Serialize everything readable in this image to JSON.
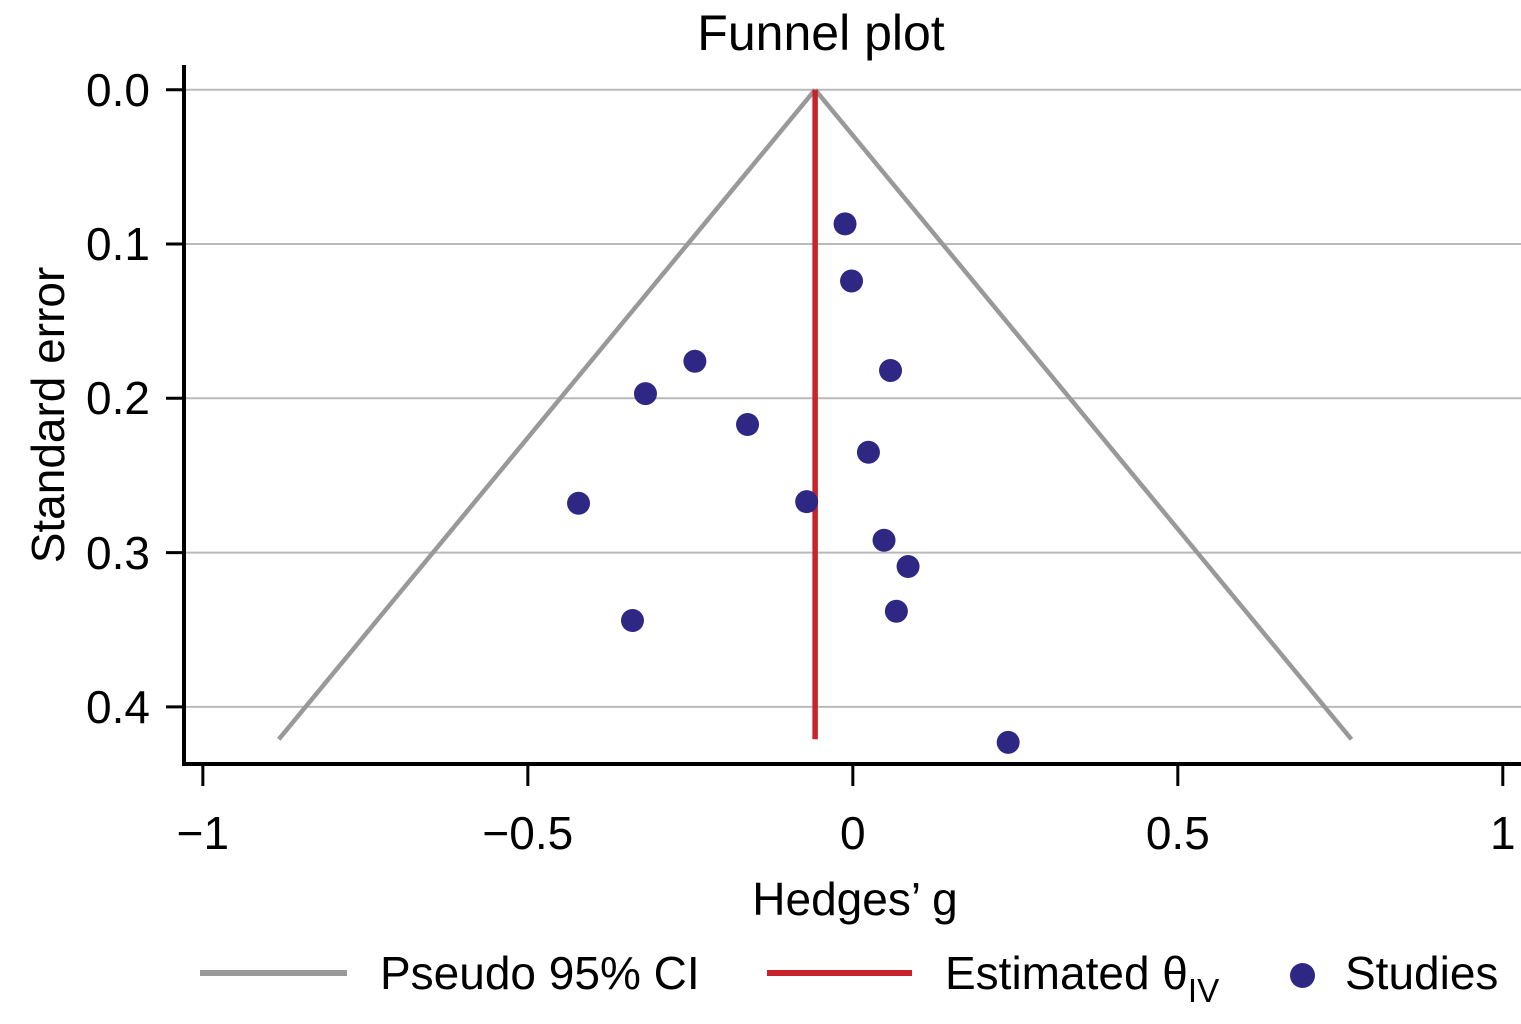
{
  "title": "Funnel plot",
  "axes": {
    "y_label": "Standard error",
    "x_label": "Hedges’ g"
  },
  "legend": {
    "pseudo_ci": {
      "label": "Pseudo 95% CI",
      "swatch": "gray-line"
    },
    "estimated": {
      "label_main": "Estimated θ",
      "label_sub": "IV",
      "swatch": "red-line"
    },
    "studies": {
      "label": "Studies",
      "swatch": "navy-dot"
    }
  },
  "colors": {
    "studies": "#2e2884",
    "pseudo_ci": "#999999",
    "estimated_theta": "#c8232c",
    "grid": "#b9b9b9",
    "axis": "#000000"
  },
  "chart_data": {
    "type": "scatter",
    "subtype": "funnel-plot",
    "title": "Funnel plot",
    "xlabel": "Hedges’ g",
    "ylabel": "Standard error",
    "y_inverted": true,
    "grid": "horizontal",
    "x_range": [
      -1.029,
      1.028
    ],
    "se_range": [
      -0.016,
      0.437
    ],
    "x_ticks": [
      -1,
      -0.5,
      0,
      0.5,
      1
    ],
    "x_tick_labels": [
      "−1",
      "−0.5",
      "0",
      "0.5",
      "1"
    ],
    "y_ticks": [
      0.0,
      0.1,
      0.2,
      0.3,
      0.4
    ],
    "y_tick_labels": [
      "0.0",
      "0.1",
      "0.2",
      "0.3",
      "0.4"
    ],
    "estimated_theta": -0.058,
    "ci_z": 1.96,
    "funnel_se_max": 0.421,
    "point_radius_px": 11.5,
    "points": [
      {
        "g": -0.012,
        "se": 0.087
      },
      {
        "g": -0.002,
        "se": 0.124
      },
      {
        "g": -0.243,
        "se": 0.176
      },
      {
        "g": 0.058,
        "se": 0.182
      },
      {
        "g": -0.319,
        "se": 0.197
      },
      {
        "g": -0.162,
        "se": 0.217
      },
      {
        "g": 0.024,
        "se": 0.235
      },
      {
        "g": -0.422,
        "se": 0.268
      },
      {
        "g": -0.071,
        "se": 0.267
      },
      {
        "g": 0.048,
        "se": 0.292
      },
      {
        "g": 0.085,
        "se": 0.309
      },
      {
        "g": 0.067,
        "se": 0.338
      },
      {
        "g": -0.339,
        "se": 0.344
      },
      {
        "g": 0.239,
        "se": 0.423
      }
    ]
  }
}
